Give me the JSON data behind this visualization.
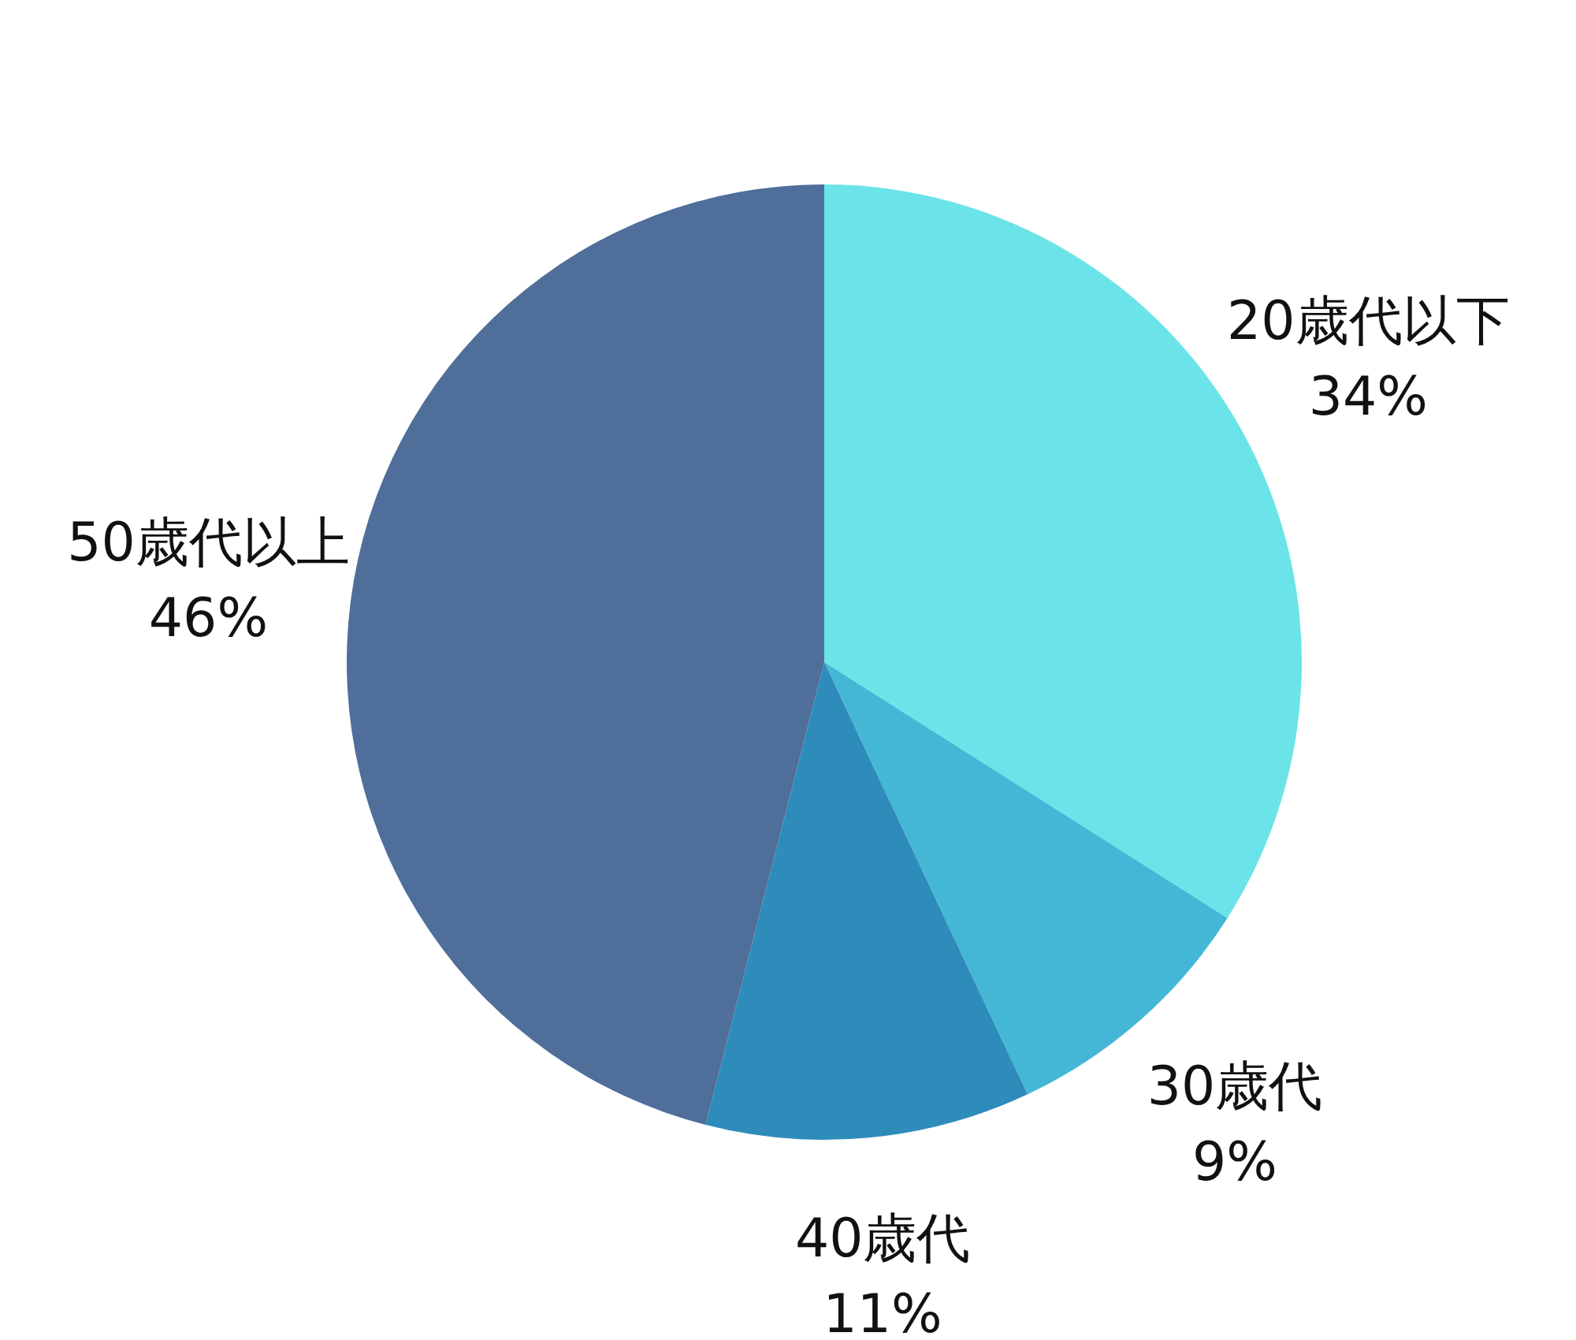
{
  "chart_data": {
    "type": "pie",
    "categories": [
      "20歳代以下",
      "30歳代",
      "40歳代",
      "50歳代以上"
    ],
    "values": [
      34,
      9,
      11,
      46
    ],
    "value_labels": [
      "34%",
      "9%",
      "11%",
      "46%"
    ],
    "colors": [
      "#6ae4e8",
      "#44b7d6",
      "#2e8cba",
      "#4f6e9a"
    ]
  }
}
